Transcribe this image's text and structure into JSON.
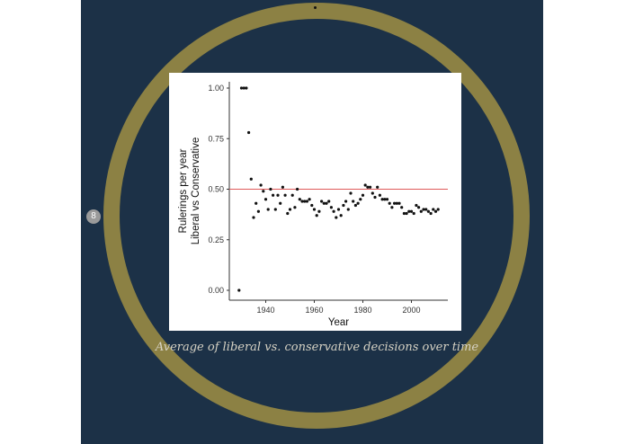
{
  "badge": {
    "label": "8"
  },
  "caption": "Average of liberal vs. conservative decisions over time",
  "colors": {
    "background": "#1c3147",
    "ring": "#8c8144",
    "reference_line": "#e05a5a",
    "points": "#111111"
  },
  "chart_data": {
    "type": "scatter",
    "xlabel": "Year",
    "ylabel_lines": [
      "Rulerings per year",
      "Liberal vs Conservative"
    ],
    "xlim": [
      1925,
      2015
    ],
    "ylim": [
      0,
      1
    ],
    "x_ticks": [
      1940,
      1960,
      1980,
      2000
    ],
    "x_tick_labels": [
      "1940",
      "1960",
      "1980",
      "2000"
    ],
    "y_ticks": [
      0,
      0.25,
      0.5,
      0.75,
      1
    ],
    "y_tick_labels": [
      "0.00",
      "0.25",
      "0.50",
      "0.75",
      "1.00"
    ],
    "reference_line": {
      "y": 0.5
    },
    "grid": false,
    "points": {
      "x": [
        1929,
        1930,
        1931,
        1932,
        1933,
        1934,
        1935,
        1936,
        1937,
        1938,
        1939,
        1940,
        1941,
        1942,
        1943,
        1944,
        1945,
        1946,
        1947,
        1948,
        1949,
        1950,
        1951,
        1952,
        1953,
        1954,
        1955,
        1956,
        1957,
        1958,
        1959,
        1960,
        1961,
        1962,
        1963,
        1964,
        1965,
        1966,
        1967,
        1968,
        1969,
        1970,
        1971,
        1972,
        1973,
        1974,
        1975,
        1976,
        1977,
        1978,
        1979,
        1980,
        1981,
        1982,
        1983,
        1984,
        1985,
        1986,
        1987,
        1988,
        1989,
        1990,
        1991,
        1992,
        1993,
        1994,
        1995,
        1996,
        1997,
        1998,
        1999,
        2000,
        2001,
        2002,
        2003,
        2004,
        2005,
        2006,
        2007,
        2008,
        2009,
        2010,
        2011
      ],
      "y": [
        0.0,
        1.0,
        1.0,
        1.0,
        0.78,
        0.55,
        0.36,
        0.43,
        0.39,
        0.52,
        0.49,
        0.45,
        0.4,
        0.5,
        0.47,
        0.4,
        0.47,
        0.43,
        0.51,
        0.47,
        0.38,
        0.4,
        0.47,
        0.41,
        0.5,
        0.45,
        0.44,
        0.44,
        0.44,
        0.45,
        0.42,
        0.4,
        0.37,
        0.39,
        0.44,
        0.43,
        0.43,
        0.44,
        0.41,
        0.39,
        0.36,
        0.4,
        0.37,
        0.42,
        0.44,
        0.4,
        0.48,
        0.44,
        0.42,
        0.43,
        0.45,
        0.47,
        0.52,
        0.51,
        0.51,
        0.48,
        0.46,
        0.51,
        0.47,
        0.45,
        0.45,
        0.45,
        0.43,
        0.41,
        0.43,
        0.43,
        0.43,
        0.41,
        0.38,
        0.38,
        0.39,
        0.39,
        0.38,
        0.42,
        0.41,
        0.39,
        0.4,
        0.4,
        0.39,
        0.38,
        0.4,
        0.39,
        0.4
      ]
    }
  }
}
